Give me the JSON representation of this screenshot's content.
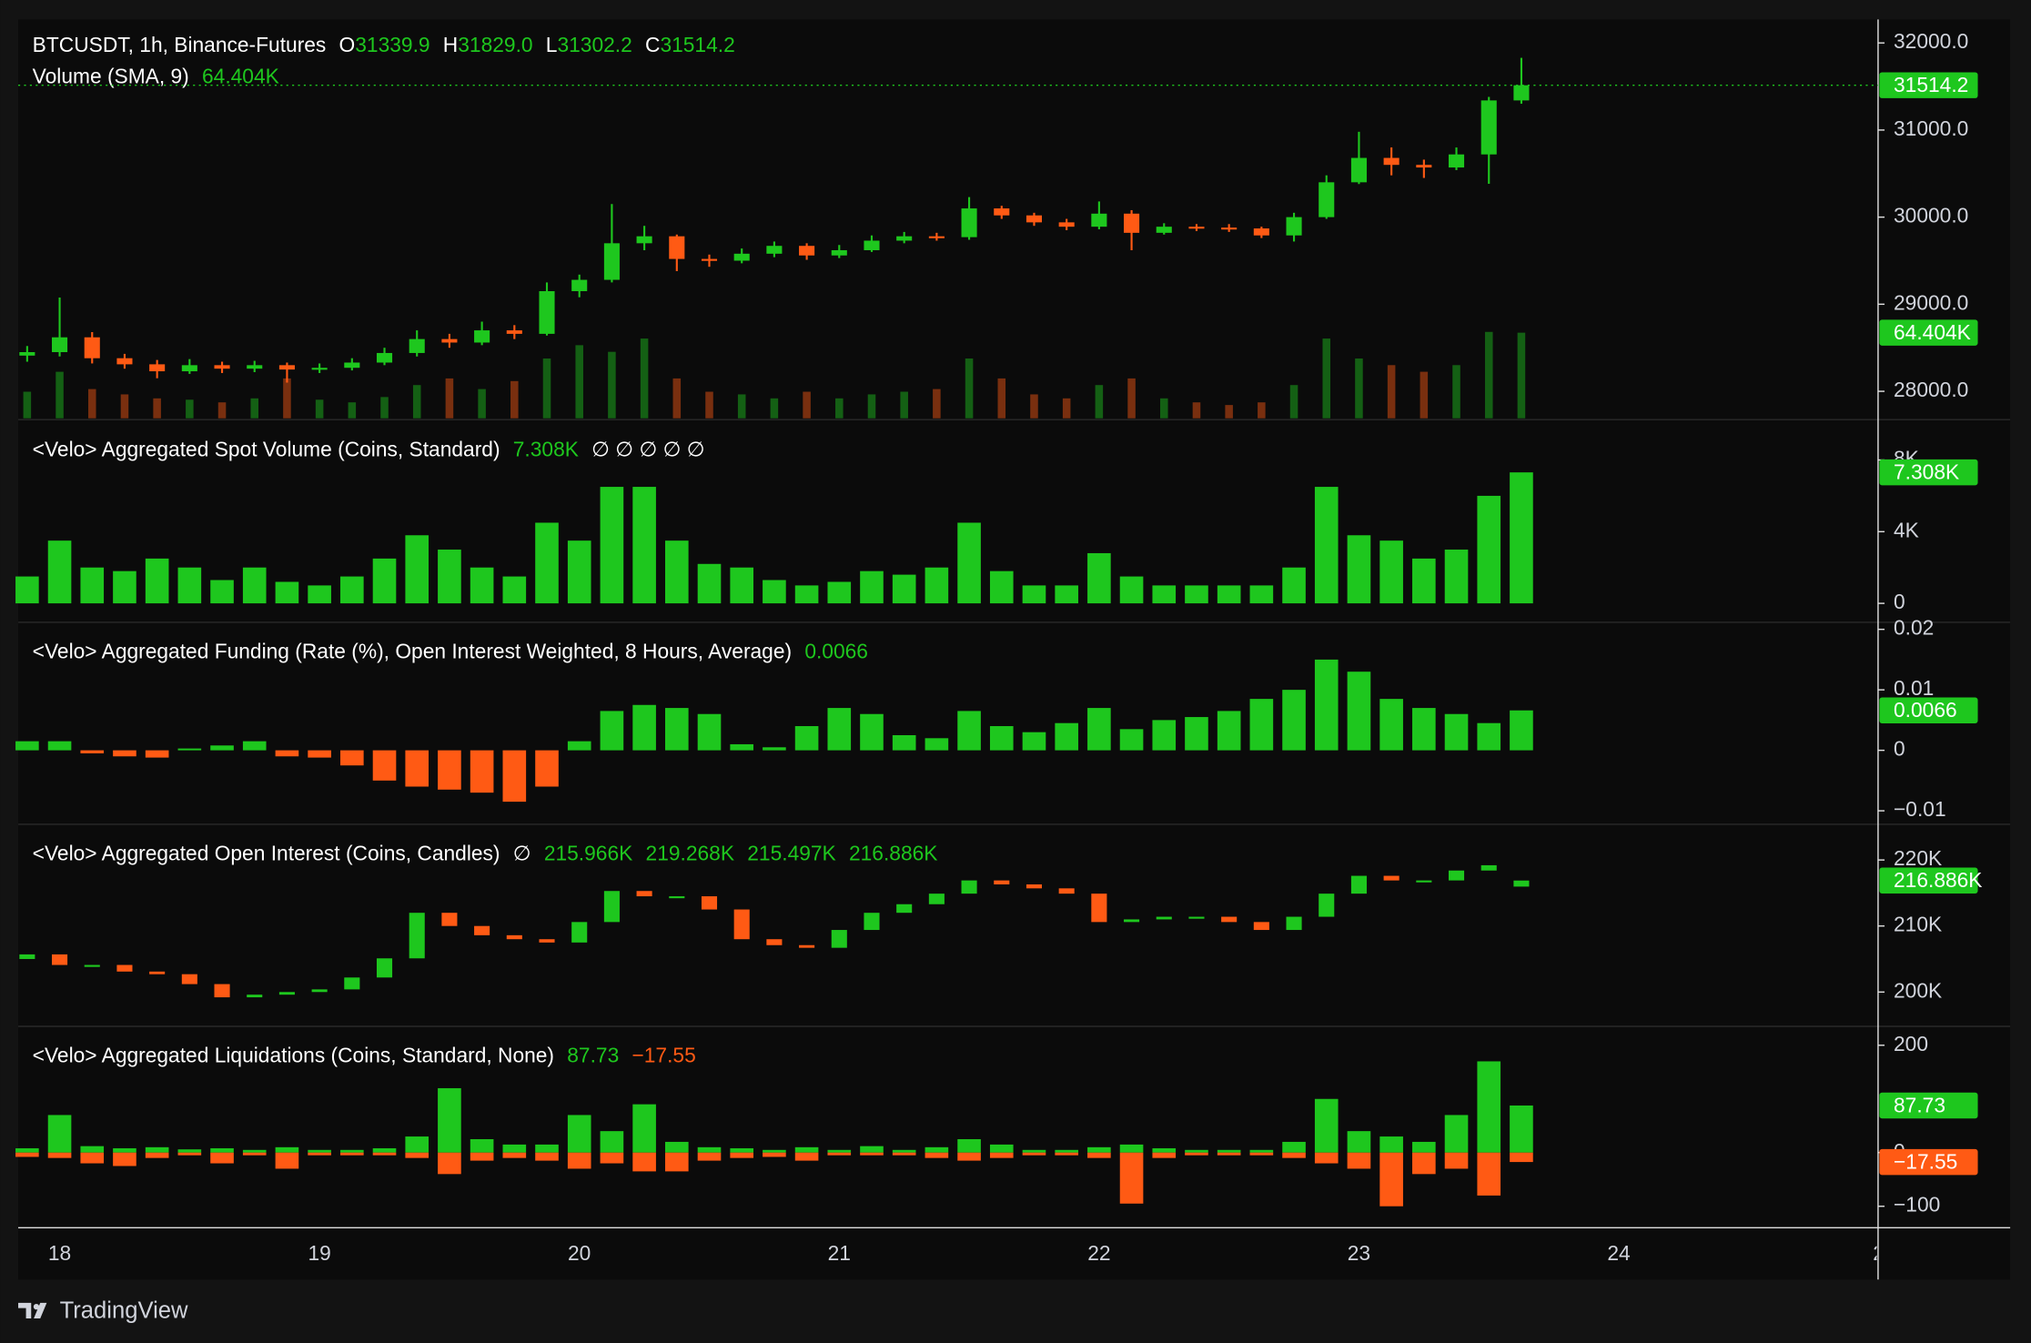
{
  "footer": "TradingView",
  "chart_data": [
    {
      "type": "candlestick",
      "title": "BTCUSDT, 1h, Binance-Futures",
      "legend_keys": [
        "O",
        "H",
        "L",
        "C"
      ],
      "legend_values": [
        "31339.9",
        "31829.0",
        "31302.2",
        "31514.2"
      ],
      "last_label": "31514.2",
      "up_color": "#1ec71e",
      "down_color": "#ff5a14",
      "categories": [
        null,
        "18",
        null,
        null,
        null,
        null,
        null,
        null,
        null,
        "19",
        null,
        null,
        null,
        null,
        null,
        null,
        null,
        "20",
        null,
        null,
        null,
        null,
        null,
        null,
        null,
        "21",
        null,
        null,
        null,
        null,
        null,
        null,
        null,
        "22",
        null,
        null,
        null,
        null,
        null,
        null,
        null,
        "23",
        null,
        null,
        null,
        null,
        null,
        null,
        null,
        "24",
        null,
        null,
        null,
        null,
        null,
        null,
        null,
        "2"
      ],
      "open": [
        28410,
        28450,
        28620,
        28380,
        28310,
        28230,
        28300,
        28260,
        28300,
        28250,
        28270,
        28330,
        28440,
        28600,
        28560,
        28700,
        28660,
        29150,
        29280,
        29700,
        29780,
        29520,
        29500,
        29580,
        29670,
        29560,
        29620,
        29730,
        29780,
        29770,
        30100,
        30020,
        29940,
        29890,
        30040,
        29820,
        29890,
        29880,
        29870,
        29790,
        30000,
        30400,
        30680,
        30600,
        30570,
        30720,
        31339.9,
        null,
        null,
        null,
        null,
        null,
        null,
        null,
        null,
        null,
        null,
        null
      ],
      "high": [
        28520,
        29077,
        28680,
        28430,
        28360,
        28370,
        28340,
        28350,
        28330,
        28320,
        28380,
        28500,
        28700,
        28660,
        28800,
        28760,
        29250,
        29340,
        30150,
        29900,
        29800,
        29570,
        29640,
        29720,
        29700,
        29680,
        29790,
        29830,
        29820,
        30230,
        30130,
        30050,
        29980,
        30180,
        30080,
        29930,
        29920,
        29920,
        29890,
        30050,
        30480,
        30980,
        30800,
        30660,
        30800,
        31380,
        31829.0,
        null,
        null,
        null,
        null,
        null,
        null,
        null,
        null,
        null,
        null,
        null
      ],
      "low": [
        28340,
        28400,
        28320,
        28260,
        28150,
        28200,
        28210,
        28220,
        28100,
        28210,
        28240,
        28300,
        28400,
        28500,
        28530,
        28600,
        28640,
        29080,
        29250,
        29620,
        29380,
        29430,
        29470,
        29540,
        29510,
        29530,
        29600,
        29700,
        29730,
        29740,
        29980,
        29900,
        29850,
        29860,
        29620,
        29800,
        29840,
        29830,
        29760,
        29720,
        29980,
        30380,
        30480,
        30450,
        30540,
        30383,
        31302.2,
        null,
        null,
        null,
        null,
        null,
        null,
        null,
        null,
        null,
        null,
        null
      ],
      "close": [
        28450,
        28620,
        28380,
        28310,
        28230,
        28300,
        28260,
        28300,
        28250,
        28270,
        28330,
        28440,
        28600,
        28560,
        28700,
        28660,
        29150,
        29280,
        29700,
        29780,
        29520,
        29500,
        29580,
        29670,
        29560,
        29620,
        29730,
        29780,
        29770,
        30100,
        30020,
        29940,
        29890,
        30040,
        29820,
        29890,
        29880,
        29870,
        29790,
        30000,
        30400,
        30680,
        30600,
        30570,
        30720,
        31340,
        31514.2,
        null,
        null,
        null,
        null,
        null,
        null,
        null,
        null,
        null,
        null,
        null
      ],
      "ylim": [
        27690,
        32270
      ],
      "yticks": [
        {
          "value": 32000,
          "label": "32000.0"
        },
        {
          "value": 31000,
          "label": "31000.0"
        },
        {
          "value": 30000,
          "label": "30000.0"
        },
        {
          "value": 29000,
          "label": "29000.0"
        },
        {
          "value": 28000,
          "label": "28000.0"
        }
      ],
      "volume": {
        "name": "Volume (SMA, 9)",
        "label": "64.404K",
        "ylim": [
          0,
          300
        ],
        "values": [
          20,
          35,
          22,
          18,
          15,
          14,
          12,
          15,
          30,
          14,
          12,
          16,
          25,
          30,
          22,
          28,
          45,
          55,
          50,
          60,
          30,
          20,
          18,
          15,
          20,
          15,
          18,
          20,
          22,
          45,
          30,
          18,
          15,
          25,
          30,
          15,
          12,
          10,
          12,
          25,
          60,
          45,
          40,
          35,
          40,
          65,
          64.404,
          null,
          null,
          null,
          null,
          null,
          null,
          null,
          null,
          null,
          null,
          null
        ]
      }
    },
    {
      "type": "bar",
      "title": "<Velo> Aggregated Spot Volume (Coins, Standard)",
      "legend_values": [
        "7.308K"
      ],
      "suffix": "∅ ∅ ∅ ∅ ∅",
      "tag": "7.308K",
      "color": "#1ec71e",
      "values": [
        1.5,
        3.5,
        2.0,
        1.8,
        2.5,
        2.0,
        1.3,
        2.0,
        1.2,
        1.0,
        1.5,
        2.5,
        3.8,
        3.0,
        2.0,
        1.5,
        4.5,
        3.5,
        6.5,
        6.5,
        3.5,
        2.2,
        2.0,
        1.3,
        1.0,
        1.2,
        1.8,
        1.6,
        2.0,
        4.5,
        1.8,
        1.0,
        1.0,
        2.8,
        1.5,
        1.0,
        1.0,
        1.0,
        1.0,
        2.0,
        6.5,
        3.8,
        3.5,
        2.5,
        3.0,
        6.0,
        7.308,
        null,
        null,
        null,
        null,
        null,
        null,
        null,
        null,
        null,
        null,
        null
      ],
      "ylim": [
        -1.02,
        10.18
      ],
      "yticks": [
        {
          "value": 8,
          "label": "8K"
        },
        {
          "value": 4,
          "label": "4K"
        },
        0
      ]
    },
    {
      "type": "bar",
      "title": "<Velo> Aggregated Funding (Rate (%), Open Interest Weighted, 8 Hours, Average)",
      "legend_values": [
        "0.0066"
      ],
      "tag": "0.0066",
      "up_color": "#1ec71e",
      "down_color": "#ff5a14",
      "values": [
        0.0015,
        0.0015,
        -0.0005,
        -0.001,
        -0.0012,
        0.0003,
        0.0008,
        0.0015,
        -0.001,
        -0.0012,
        -0.0025,
        -0.005,
        -0.006,
        -0.0065,
        -0.007,
        -0.0085,
        -0.006,
        0.0015,
        0.0065,
        0.0075,
        0.007,
        0.006,
        0.001,
        0.0005,
        0.004,
        0.007,
        0.006,
        0.0025,
        0.002,
        0.0065,
        0.004,
        0.003,
        0.0045,
        0.007,
        0.0035,
        0.005,
        0.0055,
        0.0065,
        0.0085,
        0.01,
        0.015,
        0.013,
        0.0085,
        0.007,
        0.006,
        0.0045,
        0.0066,
        null,
        null,
        null,
        null,
        null,
        null,
        null,
        null,
        null,
        null,
        null
      ],
      "ylim": [
        -0.01213,
        0.02106
      ],
      "yticks": [
        0.02,
        0.01,
        0,
        {
          "value": -0.01,
          "label": "−0.01"
        }
      ]
    },
    {
      "type": "candlestick",
      "title": "<Velo> Aggregated Open Interest (Coins, Candles)",
      "prefix": "∅",
      "legend_values": [
        "215.966K",
        "219.268K",
        "215.497K",
        "216.886K"
      ],
      "last_label": "216.886K",
      "up_color": "#1ec71e",
      "down_color": "#ff5a14",
      "open": [
        205.0,
        205.7,
        204.1,
        204.1,
        203.1,
        202.7,
        201.2,
        199.2,
        199.6,
        200.0,
        200.4,
        202.2,
        205.1,
        212.0,
        210.0,
        208.6,
        208.0,
        207.5,
        210.6,
        215.3,
        214.5,
        214.5,
        212.5,
        208.0,
        207.1,
        206.7,
        209.4,
        212.0,
        213.3,
        214.9,
        216.9,
        216.3,
        215.7,
        214.9,
        210.6,
        211.0,
        211.4,
        211.4,
        210.6,
        209.4,
        211.4,
        214.9,
        217.6,
        216.9,
        216.9,
        218.4,
        215.966,
        null,
        null,
        null,
        null,
        null,
        null,
        null,
        null,
        null,
        null,
        null
      ],
      "close": [
        205.7,
        204.1,
        204.1,
        203.1,
        202.7,
        201.2,
        199.2,
        199.6,
        200.0,
        200.4,
        202.2,
        205.1,
        212.0,
        210.0,
        208.6,
        208.0,
        207.5,
        210.6,
        215.3,
        214.5,
        214.5,
        212.5,
        208.0,
        207.1,
        206.7,
        209.4,
        212.0,
        213.3,
        214.9,
        216.9,
        216.3,
        215.7,
        214.9,
        210.6,
        211.0,
        211.4,
        211.4,
        210.6,
        209.4,
        211.4,
        214.9,
        217.6,
        216.9,
        216.9,
        218.4,
        219.2,
        216.886,
        null,
        null,
        null,
        null,
        null,
        null,
        null,
        null,
        null,
        null,
        null
      ],
      "ylim": [
        194.9,
        225.3
      ],
      "yticks": [
        {
          "value": 220,
          "label": "220K"
        },
        {
          "value": 210,
          "label": "210K"
        },
        {
          "value": 200,
          "label": "200K"
        }
      ]
    },
    {
      "type": "bar",
      "title": "<Velo> Aggregated Liquidations (Coins, Standard, None)",
      "series": [
        {
          "color": "#1ec71e",
          "tag": "87.73",
          "values": [
            8,
            70,
            12,
            8,
            10,
            6,
            8,
            5,
            10,
            5,
            5,
            8,
            30,
            120,
            25,
            15,
            15,
            70,
            40,
            90,
            20,
            10,
            8,
            5,
            10,
            5,
            12,
            5,
            10,
            25,
            15,
            5,
            5,
            10,
            15,
            8,
            5,
            5,
            5,
            20,
            100,
            40,
            30,
            20,
            70,
            170,
            87.73,
            null,
            null,
            null,
            null,
            null,
            null,
            null,
            null,
            null,
            null,
            null
          ]
        },
        {
          "color": "#ff5a14",
          "tag": "−17.55",
          "values": [
            -8,
            -10,
            -20,
            -25,
            -10,
            -5,
            -20,
            -5,
            -30,
            -5,
            -5,
            -5,
            -10,
            -40,
            -15,
            -10,
            -15,
            -30,
            -20,
            -35,
            -35,
            -15,
            -10,
            -8,
            -15,
            -5,
            -5,
            -5,
            -10,
            -15,
            -10,
            -5,
            -5,
            -10,
            -95,
            -10,
            -5,
            -5,
            -5,
            -10,
            -20,
            -30,
            -100,
            -40,
            -30,
            -80,
            -17.55,
            null,
            null,
            null,
            null,
            null,
            null,
            null,
            null,
            null,
            null,
            null
          ]
        }
      ],
      "legend_values": [
        "87.73",
        "−17.55"
      ],
      "ylim": [
        -140,
        234
      ],
      "yticks": [
        200,
        0,
        {
          "value": -100,
          "label": "−100"
        }
      ]
    }
  ]
}
